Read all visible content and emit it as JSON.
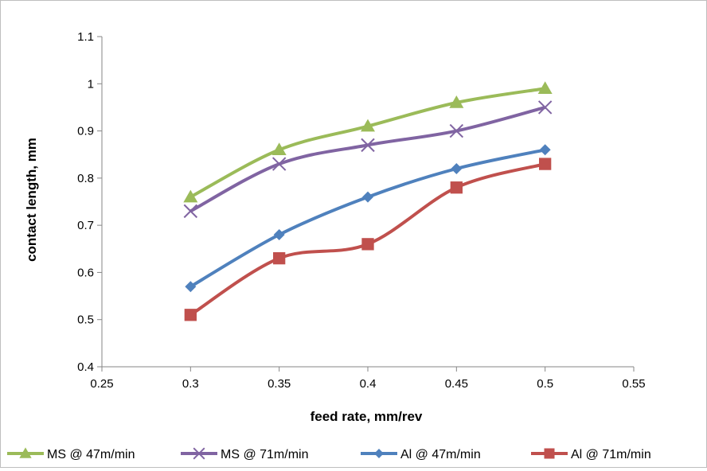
{
  "chart_data": {
    "type": "line",
    "title": "",
    "xlabel": "feed rate, mm/rev",
    "ylabel": "contact length, mm",
    "xlim": [
      0.25,
      0.55
    ],
    "ylim": [
      0.4,
      1.1
    ],
    "x_ticks": [
      0.25,
      0.3,
      0.35,
      0.4,
      0.45,
      0.5,
      0.55
    ],
    "x_tick_labels": [
      "0.25",
      "0.3",
      "0.35",
      "0.4",
      "0.45",
      "0.5",
      "0.55"
    ],
    "y_ticks": [
      0.4,
      0.5,
      0.6,
      0.7,
      0.8,
      0.9,
      1.0,
      1.1
    ],
    "y_tick_labels": [
      "0.4",
      "0.5",
      "0.6",
      "0.7",
      "0.8",
      "0.9",
      "1",
      "1.1"
    ],
    "grid": false,
    "legend_position": "bottom",
    "series": [
      {
        "name": "MS @ 47m/min",
        "color": "#9BBB59",
        "marker": "triangle",
        "x": [
          0.3,
          0.35,
          0.4,
          0.45,
          0.5
        ],
        "y": [
          0.76,
          0.86,
          0.91,
          0.96,
          0.99
        ]
      },
      {
        "name": "MS @ 71m/min",
        "color": "#8064A2",
        "marker": "x",
        "x": [
          0.3,
          0.35,
          0.4,
          0.45,
          0.5
        ],
        "y": [
          0.73,
          0.83,
          0.87,
          0.9,
          0.95
        ]
      },
      {
        "name": "Al @ 47m/min",
        "color": "#4F81BD",
        "marker": "diamond",
        "x": [
          0.3,
          0.35,
          0.4,
          0.45,
          0.5
        ],
        "y": [
          0.57,
          0.68,
          0.76,
          0.82,
          0.86
        ]
      },
      {
        "name": "Al @ 71m/min",
        "color": "#C0504D",
        "marker": "square",
        "x": [
          0.3,
          0.35,
          0.4,
          0.45,
          0.5
        ],
        "y": [
          0.51,
          0.63,
          0.66,
          0.78,
          0.83
        ]
      }
    ]
  }
}
